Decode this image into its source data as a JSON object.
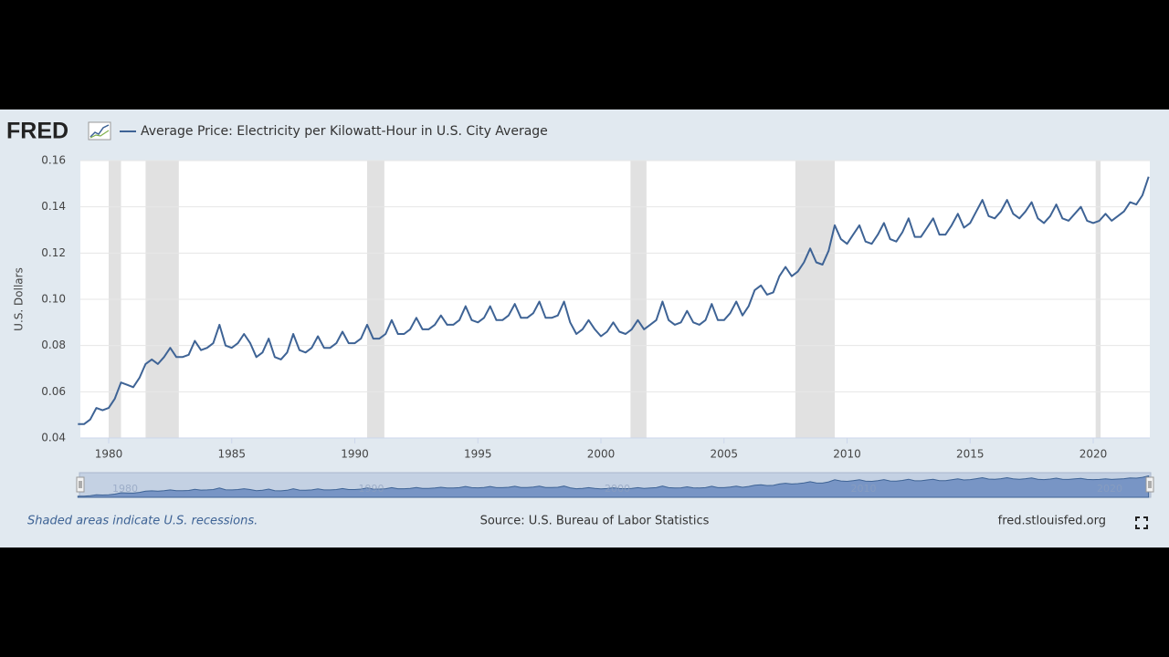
{
  "logo": "FRED",
  "chart_data": {
    "type": "line",
    "series": [
      {
        "name": "Average Price: Electricity per Kilowatt-Hour in U.S. City Average",
        "color": "#3e6395",
        "values": [
          0.046,
          0.046,
          0.048,
          0.053,
          0.052,
          0.053,
          0.057,
          0.064,
          0.063,
          0.062,
          0.066,
          0.072,
          0.074,
          0.072,
          0.075,
          0.079,
          0.075,
          0.075,
          0.076,
          0.082,
          0.078,
          0.079,
          0.081,
          0.089,
          0.08,
          0.079,
          0.081,
          0.085,
          0.081,
          0.075,
          0.077,
          0.083,
          0.075,
          0.074,
          0.077,
          0.085,
          0.078,
          0.077,
          0.079,
          0.084,
          0.079,
          0.079,
          0.081,
          0.086,
          0.081,
          0.081,
          0.083,
          0.089,
          0.083,
          0.083,
          0.085,
          0.091,
          0.085,
          0.085,
          0.087,
          0.092,
          0.087,
          0.087,
          0.089,
          0.093,
          0.089,
          0.089,
          0.091,
          0.097,
          0.091,
          0.09,
          0.092,
          0.097,
          0.091,
          0.091,
          0.093,
          0.098,
          0.092,
          0.092,
          0.094,
          0.099,
          0.092,
          0.092,
          0.093,
          0.099,
          0.09,
          0.085,
          0.087,
          0.091,
          0.087,
          0.084,
          0.086,
          0.09,
          0.086,
          0.085,
          0.087,
          0.091,
          0.087,
          0.089,
          0.091,
          0.099,
          0.091,
          0.089,
          0.09,
          0.095,
          0.09,
          0.089,
          0.091,
          0.098,
          0.091,
          0.091,
          0.094,
          0.099,
          0.093,
          0.097,
          0.104,
          0.106,
          0.102,
          0.103,
          0.11,
          0.114,
          0.11,
          0.112,
          0.116,
          0.122,
          0.116,
          0.115,
          0.121,
          0.132,
          0.126,
          0.124,
          0.128,
          0.132,
          0.125,
          0.124,
          0.128,
          0.133,
          0.126,
          0.125,
          0.129,
          0.135,
          0.127,
          0.127,
          0.131,
          0.135,
          0.128,
          0.128,
          0.132,
          0.137,
          0.131,
          0.133,
          0.138,
          0.143,
          0.136,
          0.135,
          0.138,
          0.143,
          0.137,
          0.135,
          0.138,
          0.142,
          0.135,
          0.133,
          0.136,
          0.141,
          0.135,
          0.134,
          0.137,
          0.14,
          0.134,
          0.133,
          0.134,
          0.137,
          0.134,
          0.136,
          0.138,
          0.142,
          0.141,
          0.145,
          0.153
        ]
      }
    ],
    "x": [
      1978.75,
      1979,
      1979.25,
      1979.5,
      1979.75,
      1980,
      1980.25,
      1980.5,
      1980.75,
      1981,
      1981.25,
      1981.5,
      1981.75,
      1982,
      1982.25,
      1982.5,
      1982.75,
      1983,
      1983.25,
      1983.5,
      1983.75,
      1984,
      1984.25,
      1984.5,
      1984.75,
      1985,
      1985.25,
      1985.5,
      1985.75,
      1986,
      1986.25,
      1986.5,
      1986.75,
      1987,
      1987.25,
      1987.5,
      1987.75,
      1988,
      1988.25,
      1988.5,
      1988.75,
      1989,
      1989.25,
      1989.5,
      1989.75,
      1990,
      1990.25,
      1990.5,
      1990.75,
      1991,
      1991.25,
      1991.5,
      1991.75,
      1992,
      1992.25,
      1992.5,
      1992.75,
      1993,
      1993.25,
      1993.5,
      1993.75,
      1994,
      1994.25,
      1994.5,
      1994.75,
      1995,
      1995.25,
      1995.5,
      1995.75,
      1996,
      1996.25,
      1996.5,
      1996.75,
      1997,
      1997.25,
      1997.5,
      1997.75,
      1998,
      1998.25,
      1998.5,
      1998.75,
      1999,
      1999.25,
      1999.5,
      1999.75,
      2000,
      2000.25,
      2000.5,
      2000.75,
      2001,
      2001.25,
      2001.5,
      2001.75,
      2002,
      2002.25,
      2002.5,
      2002.75,
      2003,
      2003.25,
      2003.5,
      2003.75,
      2004,
      2004.25,
      2004.5,
      2004.75,
      2005,
      2005.25,
      2005.5,
      2005.75,
      2006,
      2006.25,
      2006.5,
      2006.75,
      2007,
      2007.25,
      2007.5,
      2007.75,
      2008,
      2008.25,
      2008.5,
      2008.75,
      2009,
      2009.25,
      2009.5,
      2009.75,
      2010,
      2010.25,
      2010.5,
      2010.75,
      2011,
      2011.25,
      2011.5,
      2011.75,
      2012,
      2012.25,
      2012.5,
      2012.75,
      2013,
      2013.25,
      2013.5,
      2013.75,
      2014,
      2014.25,
      2014.5,
      2014.75,
      2015,
      2015.25,
      2015.5,
      2015.75,
      2016,
      2016.25,
      2016.5,
      2016.75,
      2017,
      2017.25,
      2017.5,
      2017.75,
      2018,
      2018.25,
      2018.5,
      2018.75,
      2019,
      2019.25,
      2019.5,
      2019.75,
      2020,
      2020.25,
      2020.5,
      2020.75,
      2021,
      2021.25,
      2021.5,
      2021.75,
      2022,
      2022.25
    ],
    "xlim": [
      1978.85,
      2022.3
    ],
    "xticks": [
      1980,
      1985,
      1990,
      1995,
      2000,
      2005,
      2010,
      2015,
      2020
    ],
    "ylim": [
      0.04,
      0.16
    ],
    "yticks": [
      0.04,
      0.06,
      0.08,
      {
        "value": 0.1,
        "label": "0.10"
      },
      0.12,
      0.14,
      0.16
    ],
    "ylabel": "U.S. Dollars",
    "grid": true,
    "recessions": [
      [
        1980.0,
        1980.5
      ],
      [
        1981.5,
        1982.85
      ],
      [
        1990.5,
        1991.2
      ],
      [
        2001.2,
        2001.85
      ],
      [
        2007.9,
        2009.5
      ],
      [
        2020.1,
        2020.3
      ]
    ],
    "recession_color": "#e1e1e1",
    "navigator_ticks": [
      1980,
      1990,
      2000,
      2010,
      2020
    ],
    "note": "Shaded areas indicate U.S. recessions.",
    "source": "Source: U.S. Bureau of Labor Statistics",
    "site": "fred.stlouisfed.org"
  }
}
